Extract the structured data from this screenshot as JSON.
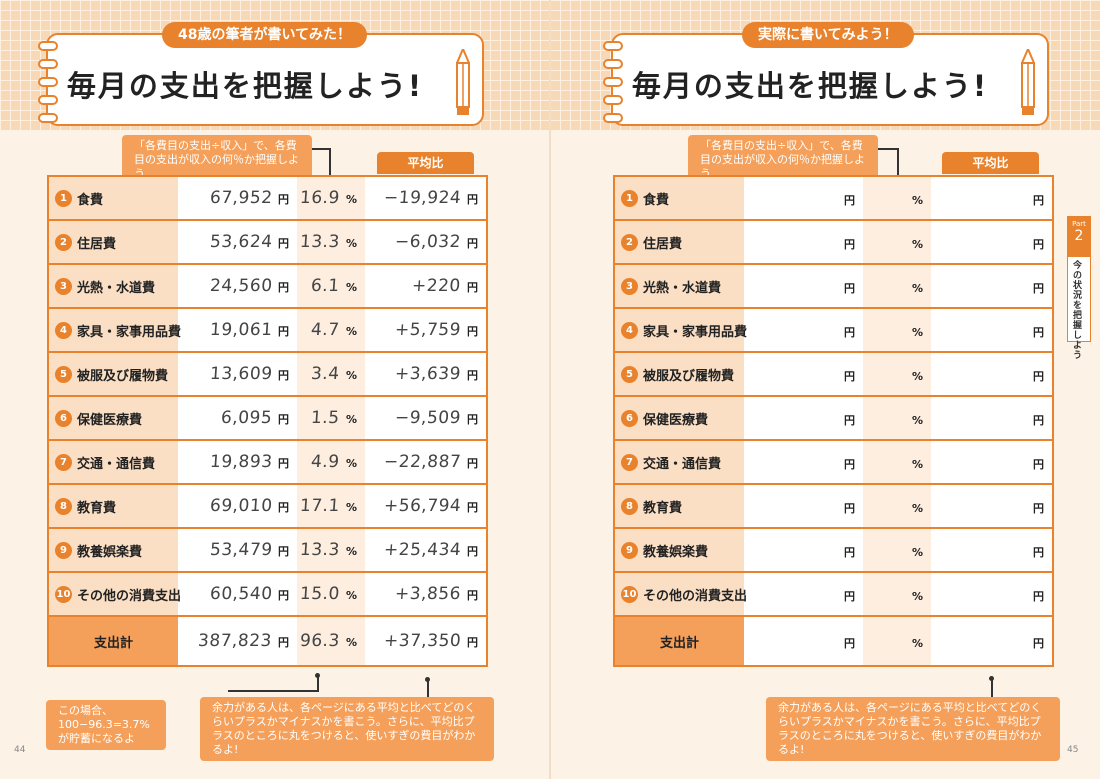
{
  "left": {
    "tag": "48歳の筆者が書いてみた！",
    "title": "毎月の支出を把握しよう!",
    "note_top": "「各費目の支出÷収入」で、各費目の支出が収入の何％か把握しよう",
    "avg_header": "平均比",
    "rows": [
      {
        "no": "1",
        "label": "食費",
        "amount": "67,952",
        "pct": "16.9",
        "avg": "−19,924"
      },
      {
        "no": "2",
        "label": "住居費",
        "amount": "53,624",
        "pct": "13.3",
        "avg": "−6,032"
      },
      {
        "no": "3",
        "label": "光熱・水道費",
        "amount": "24,560",
        "pct": "6.1",
        "avg": "+220"
      },
      {
        "no": "4",
        "label": "家具・家事用品費",
        "amount": "19,061",
        "pct": "4.7",
        "avg": "+5,759"
      },
      {
        "no": "5",
        "label": "被服及び履物費",
        "amount": "13,609",
        "pct": "3.4",
        "avg": "+3,639"
      },
      {
        "no": "6",
        "label": "保健医療費",
        "amount": "6,095",
        "pct": "1.5",
        "avg": "−9,509"
      },
      {
        "no": "7",
        "label": "交通・通信費",
        "amount": "19,893",
        "pct": "4.9",
        "avg": "−22,887"
      },
      {
        "no": "8",
        "label": "教育費",
        "amount": "69,010",
        "pct": "17.1",
        "avg": "+56,794"
      },
      {
        "no": "9",
        "label": "教養娯楽費",
        "amount": "53,479",
        "pct": "13.3",
        "avg": "+25,434"
      },
      {
        "no": "10",
        "label": "その他の消費支出",
        "amount": "60,540",
        "pct": "15.0",
        "avg": "+3,856"
      }
    ],
    "total": {
      "label": "支出計",
      "amount": "387,823",
      "pct": "96.3",
      "avg": "+37,350"
    },
    "note_bottom_left": "この場合、100−96.3=3.7%が貯蓄になるよ",
    "note_bottom_right": "余力がある人は、各ページにある平均と比べてどのくらいプラスかマイナスかを書こう。さらに、平均比プラスのところに丸をつけると、使いすぎの費目がわかるよ!",
    "page_number": "44"
  },
  "right": {
    "tag": "実際に書いてみよう！",
    "title": "毎月の支出を把握しよう!",
    "note_top": "「各費目の支出÷収入」で、各費目の支出が収入の何％か把握しよう",
    "avg_header": "平均比",
    "rows": [
      {
        "no": "1",
        "label": "食費"
      },
      {
        "no": "2",
        "label": "住居費"
      },
      {
        "no": "3",
        "label": "光熱・水道費"
      },
      {
        "no": "4",
        "label": "家具・家事用品費"
      },
      {
        "no": "5",
        "label": "被服及び履物費"
      },
      {
        "no": "6",
        "label": "保健医療費"
      },
      {
        "no": "7",
        "label": "交通・通信費"
      },
      {
        "no": "8",
        "label": "教育費"
      },
      {
        "no": "9",
        "label": "教養娯楽費"
      },
      {
        "no": "10",
        "label": "その他の消費支出"
      }
    ],
    "total": {
      "label": "支出計"
    },
    "note_bottom": "余力がある人は、各ページにある平均と比べてどのくらいプラスかマイナスかを書こう。さらに、平均比プラスのところに丸をつけると、使いすぎの費目がわかるよ!",
    "page_number": "45"
  },
  "units": {
    "yen": "円",
    "percent": "%"
  },
  "side_tab": {
    "part_word": "Part",
    "part_number": "2",
    "title": "今の状況を把握しよう"
  },
  "colors": {
    "accent": "#e8822c",
    "light": "#fbdfc5",
    "note": "#f4a05a"
  }
}
